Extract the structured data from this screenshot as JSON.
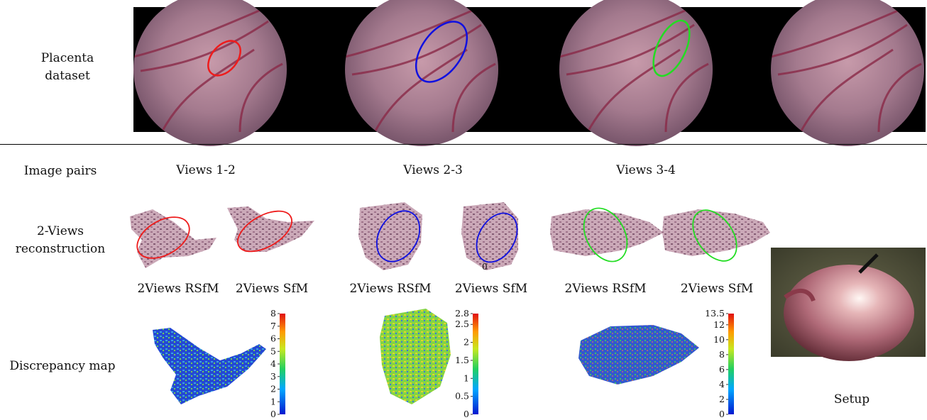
{
  "row_labels": {
    "dataset_line1": "Placenta",
    "dataset_line2": "dataset",
    "image_pairs": "Image pairs",
    "recon_line1": "2-Views",
    "recon_line2": "reconstruction",
    "discrepancy": "Discrepancy map",
    "setup": "Setup"
  },
  "pair_headers": [
    "Views 1-2",
    "Views 2-3",
    "Views 3-4"
  ],
  "method_labels": {
    "rsfm": "2Views RSfM",
    "sfm": "2Views SfM"
  },
  "stray_label": "0",
  "highlight_colors": {
    "pair1": "#ee1c1c",
    "pair2": "#1010e0",
    "pair3": "#22dd22"
  },
  "colorbars": [
    {
      "max": 8,
      "ticks": [
        "8",
        "7",
        "6",
        "5",
        "4",
        "3",
        "2",
        "1",
        "0"
      ]
    },
    {
      "max": 2.8,
      "ticks": [
        "2.8",
        "2.5",
        "2",
        "1.5",
        "1",
        "0.5",
        "0"
      ]
    },
    {
      "max": 13.5,
      "ticks": [
        "13.5",
        "12",
        "10",
        "8",
        "6",
        "4",
        "2",
        "0"
      ]
    }
  ]
}
